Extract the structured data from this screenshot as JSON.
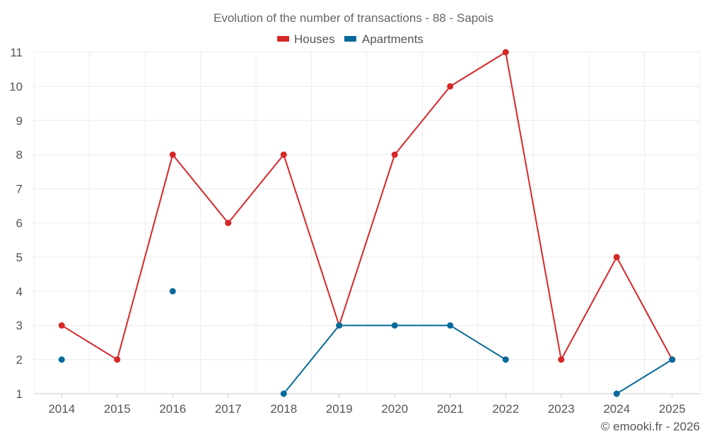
{
  "chart_data": {
    "type": "line",
    "title": "Evolution of the number of transactions - 88 - Sapois",
    "categories": [
      "2014",
      "2015",
      "2016",
      "2017",
      "2018",
      "2019",
      "2020",
      "2021",
      "2022",
      "2023",
      "2024",
      "2025"
    ],
    "series": [
      {
        "name": "Houses",
        "color": "#d62728",
        "values": [
          3,
          2,
          8,
          6,
          8,
          3,
          8,
          10,
          11,
          2,
          5,
          2
        ]
      },
      {
        "name": "Apartments",
        "color": "#08699b",
        "values": [
          2,
          null,
          4,
          null,
          1,
          3,
          3,
          3,
          2,
          null,
          1,
          2
        ]
      }
    ],
    "y_ticks": [
      1,
      2,
      3,
      4,
      5,
      6,
      7,
      8,
      9,
      10,
      11
    ],
    "ylim": [
      1,
      11
    ],
    "grid": true,
    "legend_position": "top-center",
    "xlabel": "",
    "ylabel": ""
  },
  "credit": "© emooki.fr - 2026"
}
